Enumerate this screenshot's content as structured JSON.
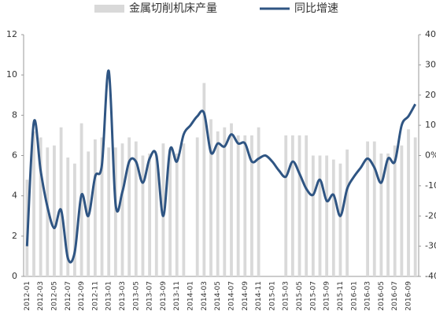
{
  "chart_data": {
    "type": "bar-line",
    "categories": [
      "2012-01",
      null,
      "2012-03",
      null,
      "2012-05",
      null,
      "2012-07",
      null,
      "2012-09",
      null,
      "2012-11",
      null,
      "2013-01",
      null,
      "2013-03",
      null,
      "2013-05",
      null,
      "2013-07",
      null,
      "2013-09",
      null,
      "2013-11",
      null,
      "2014-01",
      null,
      "2014-03",
      null,
      "2014-05",
      null,
      "2014-07",
      null,
      "2014-09",
      null,
      "2014-11",
      null,
      "2015-01",
      null,
      "2015-03",
      null,
      "2015-05",
      null,
      "2015-07",
      null,
      "2015-09",
      null,
      "2015-11",
      null,
      "2016-01",
      null,
      "2016-03",
      null,
      "2016-05",
      null,
      "2016-07",
      null,
      "2016-09",
      null
    ],
    "series": [
      {
        "name": "金属切削机床产量",
        "color": "#d9d9d9",
        "kind": "bar",
        "values": [
          4.8,
          7.2,
          6.9,
          6.4,
          6.5,
          7.4,
          5.9,
          5.6,
          7.6,
          6.2,
          6.8,
          6.9,
          6.4,
          6.4,
          6.6,
          6.9,
          6.7,
          6.0,
          6.1,
          6.0,
          6.6,
          6.3,
          6.1,
          6.6,
          null,
          6.9,
          9.6,
          7.8,
          7.2,
          7.4,
          7.6,
          7.0,
          7.0,
          7.0,
          7.4,
          null,
          null,
          null,
          7.0,
          7.0,
          7.0,
          7.0,
          6.0,
          6.0,
          6.0,
          5.8,
          5.6,
          6.3,
          null,
          null,
          6.7,
          6.7,
          6.1,
          6.1,
          6.5,
          6.5,
          7.3,
          6.9
        ]
      },
      {
        "name": "同比增速",
        "color": "#2f5583",
        "kind": "line",
        "axis": "y2",
        "values": [
          -30,
          11,
          -5,
          -17,
          -24,
          -18,
          -34,
          -32,
          -13,
          -20,
          -7,
          -3,
          28,
          -16,
          -12,
          -2,
          -2,
          -9,
          -1,
          0,
          -20,
          2,
          -2,
          7,
          10,
          13,
          14,
          1,
          4,
          3,
          7,
          4,
          4,
          -2,
          -1,
          0,
          -2,
          -5,
          -7,
          -2,
          -6,
          -11,
          -13,
          -8,
          -15,
          -13,
          -20,
          -11,
          -7,
          -4,
          -1,
          -4,
          -9,
          -1,
          -2,
          10,
          13,
          17
        ]
      }
    ],
    "ylim": [
      0,
      12
    ],
    "yticks": [
      0,
      2,
      4,
      6,
      8,
      10,
      12
    ],
    "y2lim": [
      -40,
      40
    ],
    "y2ticks": [
      {
        "value": -40,
        "label": "-40%"
      },
      {
        "value": -30,
        "label": "-30%"
      },
      {
        "value": -20,
        "label": "-20%"
      },
      {
        "value": -10,
        "label": "-10%"
      },
      {
        "value": 0,
        "label": "0%"
      },
      {
        "value": 10,
        "label": "10%"
      },
      {
        "value": 20,
        "label": "20%"
      },
      {
        "value": 30,
        "label": "30%"
      },
      {
        "value": 40,
        "label": "40%"
      }
    ]
  }
}
